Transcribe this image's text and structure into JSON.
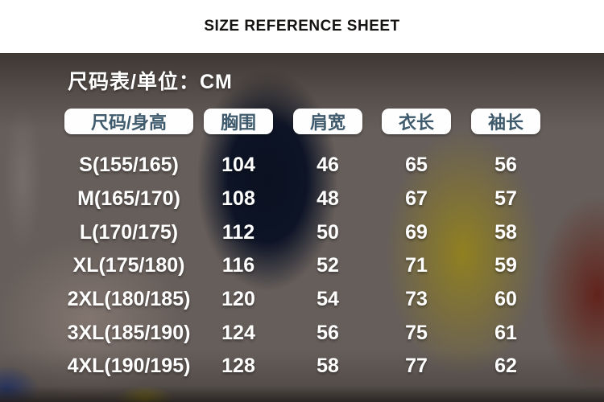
{
  "banner": {
    "title": "SIZE REFERENCE SHEET"
  },
  "sheet": {
    "title": "尺码表/单位：CM",
    "unit": "CM",
    "columns": [
      "尺码/身高",
      "胸围",
      "肩宽",
      "衣长",
      "袖长"
    ],
    "rows": [
      {
        "size": "S(155/165)",
        "chest": "104",
        "shoulder": "46",
        "length": "65",
        "sleeve": "56"
      },
      {
        "size": "M(165/170)",
        "chest": "108",
        "shoulder": "48",
        "length": "67",
        "sleeve": "57"
      },
      {
        "size": "L(170/175)",
        "chest": "112",
        "shoulder": "50",
        "length": "69",
        "sleeve": "58"
      },
      {
        "size": "XL(175/180)",
        "chest": "116",
        "shoulder": "52",
        "length": "71",
        "sleeve": "59"
      },
      {
        "size": "2XL(180/185)",
        "chest": "120",
        "shoulder": "54",
        "length": "73",
        "sleeve": "60"
      },
      {
        "size": "3XL(185/190)",
        "chest": "124",
        "shoulder": "56",
        "length": "75",
        "sleeve": "61"
      },
      {
        "size": "4XL(190/195)",
        "chest": "128",
        "shoulder": "58",
        "length": "77",
        "sleeve": "62"
      }
    ],
    "colors": {
      "header_pill_bg": "#fefefe",
      "header_pill_text": "#3e5a6c",
      "table_text": "#ffffff",
      "banner_text": "#161412"
    }
  }
}
